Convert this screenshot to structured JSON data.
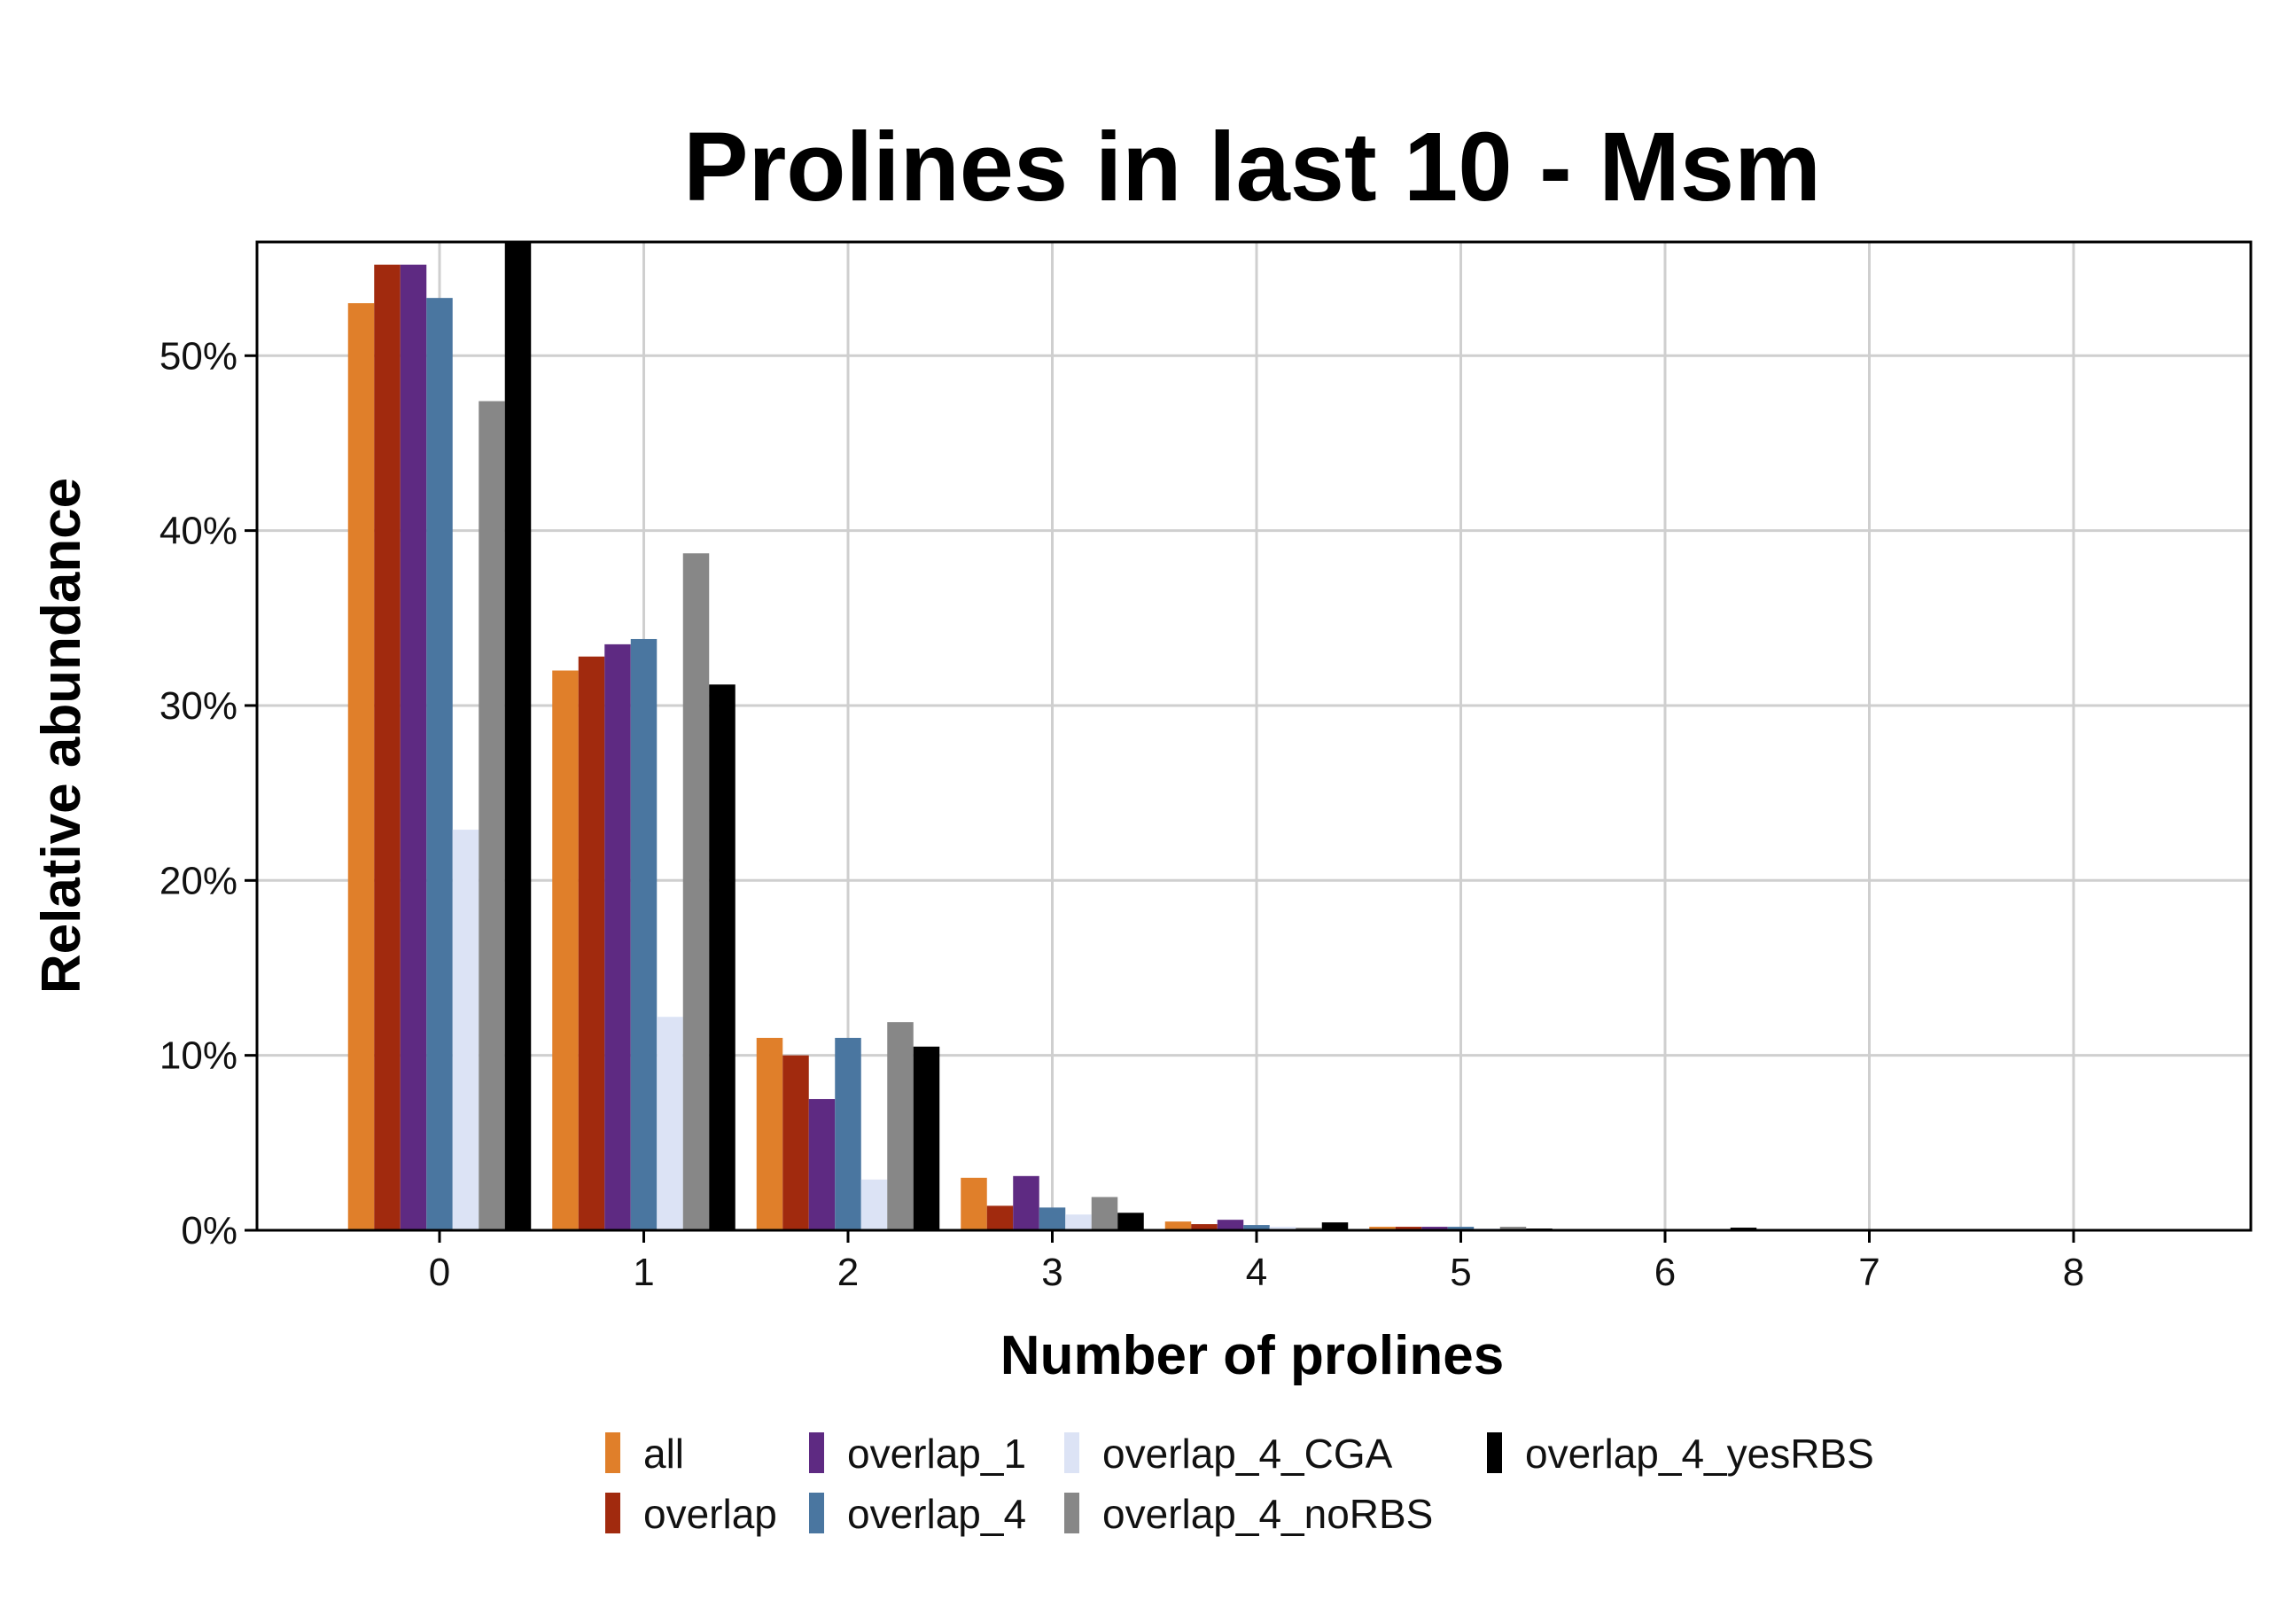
{
  "chart_data": {
    "type": "bar",
    "title": "Prolines in last 10 - Msm",
    "xlabel": "Number of prolines",
    "ylabel": "Relative abundance",
    "categories": [
      "0",
      "1",
      "2",
      "3",
      "4",
      "5",
      "6",
      "7",
      "8"
    ],
    "yticks": [
      "0%",
      "10%",
      "20%",
      "30%",
      "40%",
      "50%"
    ],
    "ylim": [
      0,
      56.5
    ],
    "grid": true,
    "legend_position": "bottom",
    "series": [
      {
        "name": "all",
        "color": "#E07F2A",
        "values": [
          53.0,
          32.0,
          11.0,
          3.0,
          0.5,
          0.2,
          0.05,
          0.02,
          0.01
        ]
      },
      {
        "name": "overlap",
        "color": "#A12A0E",
        "values": [
          55.2,
          32.8,
          10.0,
          1.4,
          0.35,
          0.2,
          0.05,
          0.02,
          0.01
        ]
      },
      {
        "name": "overlap_1",
        "color": "#5E2A82",
        "values": [
          55.2,
          33.5,
          7.5,
          3.1,
          0.6,
          0.2,
          0.05,
          0.02,
          0.01
        ]
      },
      {
        "name": "overlap_4",
        "color": "#4A76A0",
        "values": [
          53.3,
          33.8,
          11.0,
          1.3,
          0.3,
          0.2,
          0.05,
          0.02,
          0.01
        ]
      },
      {
        "name": "overlap_4_CGA",
        "color": "#DCE3F5",
        "values": [
          22.9,
          12.2,
          2.9,
          0.9,
          0.2,
          0.1,
          0.02,
          0.01,
          0.01
        ]
      },
      {
        "name": "overlap_4_noRBS",
        "color": "#878787",
        "values": [
          47.4,
          38.7,
          11.9,
          1.9,
          0.15,
          0.2,
          0.05,
          0.02,
          0.01
        ]
      },
      {
        "name": "overlap_4_yesRBS",
        "color": "#000000",
        "values": [
          56.5,
          31.2,
          10.5,
          1.0,
          0.45,
          0.1,
          0.15,
          0.02,
          0.01
        ]
      }
    ]
  }
}
